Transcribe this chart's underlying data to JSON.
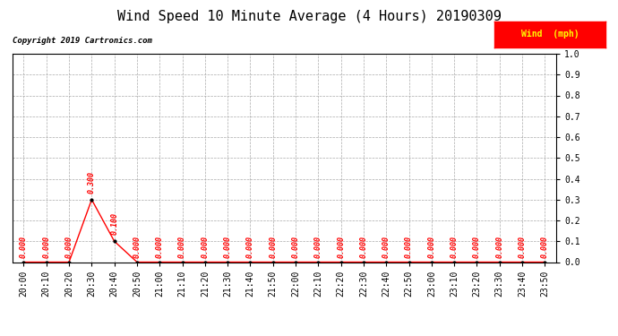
{
  "title": "Wind Speed 10 Minute Average (4 Hours) 20190309",
  "copyright": "Copyright 2019 Cartronics.com",
  "legend_label": "Wind  (mph)",
  "x_labels": [
    "20:00",
    "20:10",
    "20:20",
    "20:30",
    "20:40",
    "20:50",
    "21:00",
    "21:10",
    "21:20",
    "21:30",
    "21:40",
    "21:50",
    "22:00",
    "22:10",
    "22:20",
    "22:30",
    "22:40",
    "22:50",
    "23:00",
    "23:10",
    "23:20",
    "23:30",
    "23:40",
    "23:50"
  ],
  "y_values": [
    0.0,
    0.0,
    0.0,
    0.3,
    0.1,
    0.0,
    0.0,
    0.0,
    0.0,
    0.0,
    0.0,
    0.0,
    0.0,
    0.0,
    0.0,
    0.0,
    0.0,
    0.0,
    0.0,
    0.0,
    0.0,
    0.0,
    0.0,
    0.0
  ],
  "y_labels": [
    "0.0",
    "0.1",
    "0.2",
    "0.3",
    "0.4",
    "0.5",
    "0.6",
    "0.7",
    "0.8",
    "0.9",
    "1.0"
  ],
  "ylim": [
    0.0,
    1.0
  ],
  "line_color": "#FF0000",
  "marker_color": "#000000",
  "annotation_color": "#FF0000",
  "title_fontsize": 11,
  "axis_fontsize": 7,
  "annotation_fontsize": 6,
  "background_color": "#FFFFFF",
  "grid_color": "#AAAAAA",
  "legend_bg": "#FF0000",
  "legend_text_color": "#FFFF00"
}
